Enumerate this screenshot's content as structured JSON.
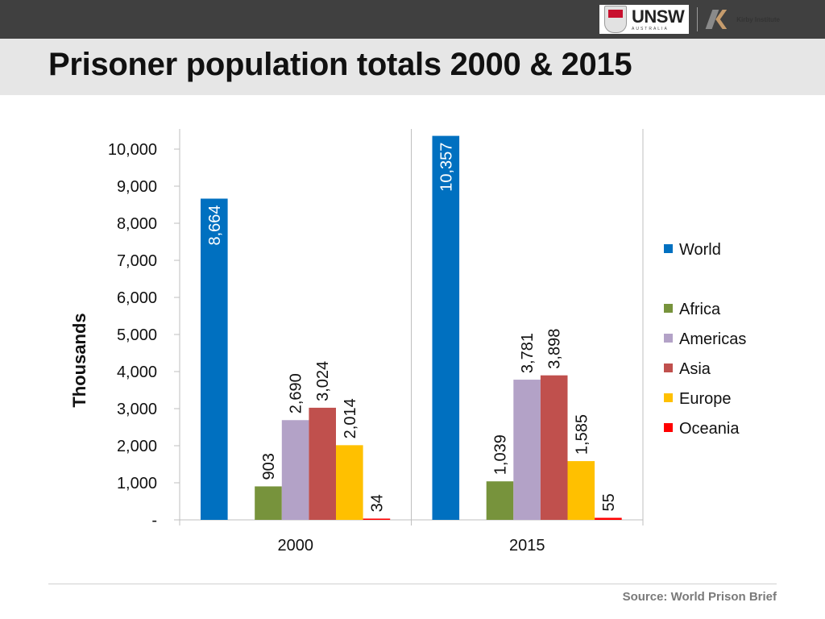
{
  "header": {
    "title": "Prisoner population totals 2000 & 2015",
    "logos": [
      "UNSW",
      "Kirby Institute"
    ],
    "logo_text_unsw": "UNSW",
    "logo_text_unsw_sub": "AUSTRALIA",
    "logo_text_kirby": "Kirby Institute"
  },
  "footer": {
    "source": "Source: World Prison Brief"
  },
  "chart_data": {
    "type": "bar",
    "title": "",
    "ylabel": "Thousands",
    "xlabel": "",
    "categories": [
      "2000",
      "2015"
    ],
    "ylim": [
      0,
      10000
    ],
    "yticks": [
      0,
      1000,
      2000,
      3000,
      4000,
      5000,
      6000,
      7000,
      8000,
      9000,
      10000
    ],
    "ytick_labels": [
      "-",
      "1,000",
      "2,000",
      "3,000",
      "4,000",
      "5,000",
      "6,000",
      "7,000",
      "8,000",
      "9,000",
      "10,000"
    ],
    "grid": false,
    "legend_position": "right",
    "series": [
      {
        "name": "World",
        "color": "#0070c0",
        "values": [
          8664,
          10357
        ],
        "labels": [
          "8,664",
          "10,357"
        ]
      },
      {
        "name": "Africa",
        "color": "#77933c",
        "values": [
          903,
          1039
        ],
        "labels": [
          "903",
          "1,039"
        ]
      },
      {
        "name": "Americas",
        "color": "#b3a2c7",
        "values": [
          2690,
          3781
        ],
        "labels": [
          "2,690",
          "3,781"
        ]
      },
      {
        "name": "Asia",
        "color": "#c0504d",
        "values": [
          3024,
          3898
        ],
        "labels": [
          "3,024",
          "3,898"
        ]
      },
      {
        "name": "Europe",
        "color": "#ffc000",
        "values": [
          2014,
          1585
        ],
        "labels": [
          "2,014",
          "1,585"
        ]
      },
      {
        "name": "Oceania",
        "color": "#ff0000",
        "values": [
          34,
          55
        ],
        "labels": [
          "34",
          "55"
        ]
      }
    ]
  }
}
